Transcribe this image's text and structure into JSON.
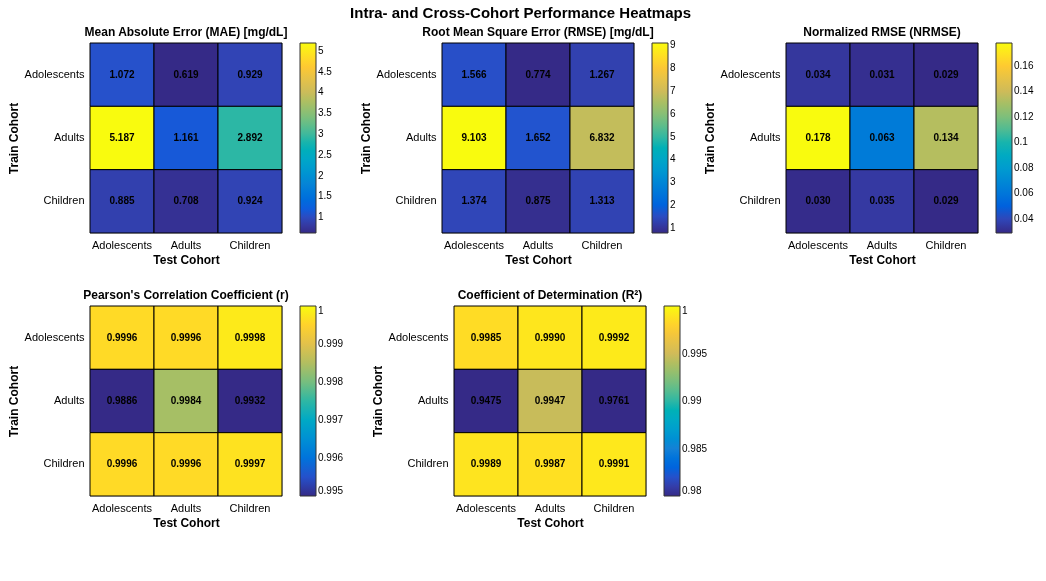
{
  "chart_data": [
    {
      "type": "heatmap",
      "title": "Mean Absolute Error (MAE) [mg/dL]",
      "xlabel": "Test Cohort",
      "ylabel": "Train Cohort",
      "annotations": [
        "Intra- and Cross-Cohort Performance Heatmaps"
      ],
      "categories": [
        "Adolescents",
        "Adults",
        "Children"
      ],
      "y_categories": [
        "Adolescents",
        "Adults",
        "Children"
      ],
      "cells": [
        [
          1.072,
          0.619,
          0.929
        ],
        [
          5.187,
          1.161,
          2.892
        ],
        [
          0.885,
          0.708,
          0.924
        ]
      ],
      "clim": [
        0.619,
        5.187
      ],
      "cticks": [
        1,
        1.5,
        2,
        2.5,
        3,
        3.5,
        4,
        4.5,
        5
      ],
      "data_labels": true,
      "grid": false
    },
    {
      "type": "heatmap",
      "title": "Root Mean Square Error (RMSE) [mg/dL]",
      "xlabel": "Test Cohort",
      "ylabel": "Train Cohort",
      "categories": [
        "Adolescents",
        "Adults",
        "Children"
      ],
      "y_categories": [
        "Adolescents",
        "Adults",
        "Children"
      ],
      "cells": [
        [
          1.566,
          0.774,
          1.267
        ],
        [
          9.103,
          1.652,
          6.832
        ],
        [
          1.374,
          0.875,
          1.313
        ]
      ],
      "clim": [
        0.774,
        9.103
      ],
      "cticks": [
        1,
        2,
        3,
        4,
        5,
        6,
        7,
        8,
        9
      ],
      "data_labels": true,
      "grid": false
    },
    {
      "type": "heatmap",
      "title": "Normalized RMSE (NRMSE)",
      "xlabel": "Test Cohort",
      "ylabel": "Train Cohort",
      "categories": [
        "Adolescents",
        "Adults",
        "Children"
      ],
      "y_categories": [
        "Adolescents",
        "Adults",
        "Children"
      ],
      "cells": [
        [
          0.034,
          0.031,
          0.029
        ],
        [
          0.178,
          0.063,
          0.134
        ],
        [
          0.03,
          0.035,
          0.029
        ]
      ],
      "cell_labels": [
        [
          "0.034",
          "0.031",
          "0.029"
        ],
        [
          "0.178",
          "0.063",
          "0.134"
        ],
        [
          "0.030",
          "0.035",
          "0.029"
        ]
      ],
      "clim": [
        0.029,
        0.178
      ],
      "cticks": [
        0.04,
        0.06,
        0.08,
        0.1,
        0.12,
        0.14,
        0.16
      ],
      "grid": false
    },
    {
      "type": "heatmap",
      "title": "Pearson's Correlation Coefficient (r)",
      "xlabel": "Test Cohort",
      "ylabel": "Train Cohort",
      "categories": [
        "Adolescents",
        "Adults",
        "Children"
      ],
      "y_categories": [
        "Adolescents",
        "Adults",
        "Children"
      ],
      "cells": [
        [
          0.9996,
          0.9996,
          0.9998
        ],
        [
          0.9886,
          0.9984,
          0.9932
        ],
        [
          0.9996,
          0.9996,
          0.9997
        ]
      ],
      "clim": [
        0.995,
        1
      ],
      "cticks": [
        0.995,
        0.996,
        0.997,
        0.998,
        0.999,
        1
      ],
      "data_labels": true,
      "grid": false
    },
    {
      "type": "heatmap",
      "title": "Coefficient of Determination (R²)",
      "xlabel": "Test Cohort",
      "ylabel": "Train Cohort",
      "categories": [
        "Adolescents",
        "Adults",
        "Children"
      ],
      "y_categories": [
        "Adolescents",
        "Adults",
        "Children"
      ],
      "cells": [
        [
          0.9985,
          0.999,
          0.9992
        ],
        [
          0.9475,
          0.9947,
          0.9761
        ],
        [
          0.9989,
          0.9987,
          0.9991
        ]
      ],
      "cell_labels": [
        [
          "0.9985",
          "0.9990",
          "0.9992"
        ],
        [
          "0.9475",
          "0.9947",
          "0.9761"
        ],
        [
          "0.9989",
          "0.9987",
          "0.9991"
        ]
      ],
      "clim": [
        0.98,
        1
      ],
      "cticks": [
        0.98,
        0.985,
        0.99,
        0.995,
        1
      ],
      "grid": false
    }
  ]
}
